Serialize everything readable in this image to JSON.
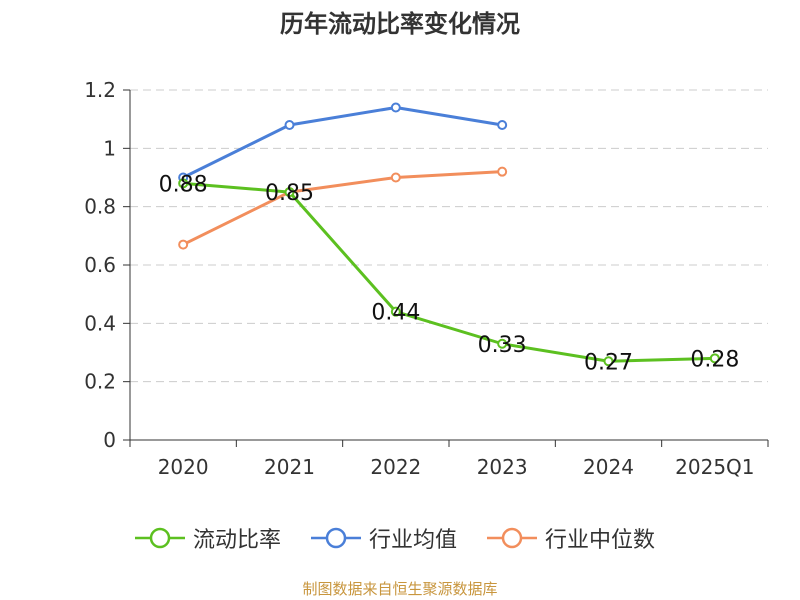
{
  "chart_data": {
    "type": "line",
    "title": "历年流动比率变化情况",
    "categories": [
      "2020",
      "2021",
      "2022",
      "2023",
      "2024",
      "2025Q1"
    ],
    "ylim": [
      0,
      1.2
    ],
    "yticks": [
      "0",
      "0.2",
      "0.4",
      "0.6",
      "0.8",
      "1",
      "1.2"
    ],
    "grid": true,
    "legend_position": "bottom",
    "series": [
      {
        "name": "流动比率",
        "color": "#5cc020",
        "values": [
          0.88,
          0.85,
          0.44,
          0.33,
          0.27,
          0.28
        ],
        "data_labels": [
          "0.88",
          "0.85",
          "0.44",
          "0.33",
          "0.27",
          "0.28"
        ]
      },
      {
        "name": "行业均值",
        "color": "#4a7fd8",
        "values": [
          0.9,
          1.08,
          1.14,
          1.08,
          null,
          null
        ]
      },
      {
        "name": "行业中位数",
        "color": "#f28e5c",
        "values": [
          0.67,
          0.85,
          0.9,
          0.92,
          null,
          null
        ]
      }
    ]
  },
  "source_text": "制图数据来自恒生聚源数据库"
}
